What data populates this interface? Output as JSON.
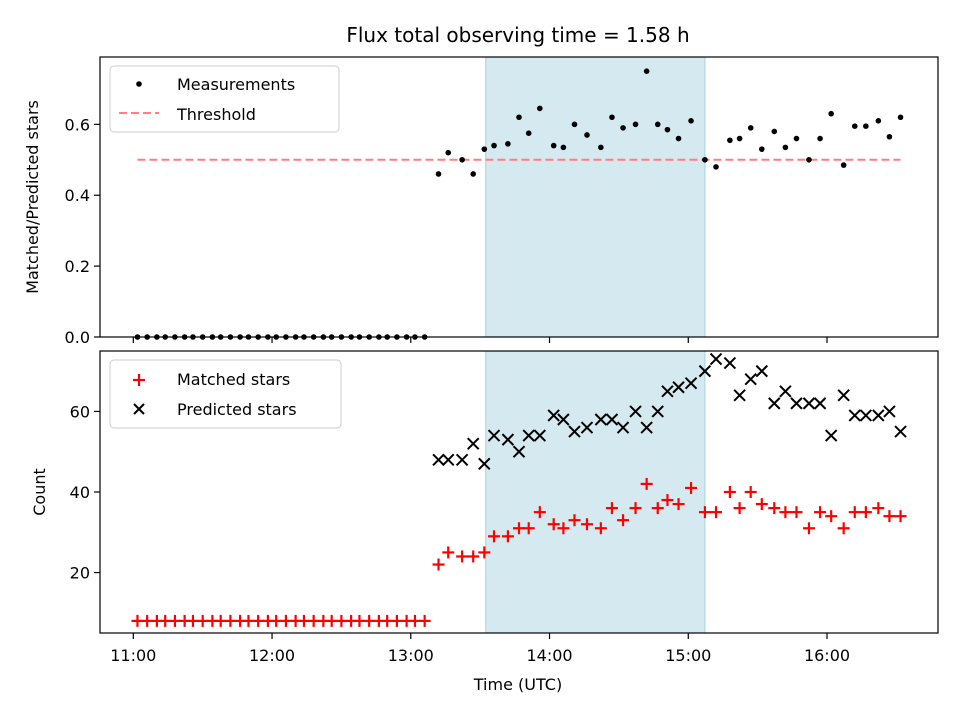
{
  "title": "Flux total observing time = 1.58 h",
  "shade": {
    "x_start": 13.54,
    "x_end": 15.12,
    "color": "#d4eaf0"
  },
  "x_axis": {
    "label": "Time (UTC)",
    "ticks": [
      11,
      12,
      13,
      14,
      15,
      16
    ],
    "tick_labels": [
      "11:00",
      "12:00",
      "13:00",
      "14:00",
      "15:00",
      "16:00"
    ],
    "range": [
      10.76,
      16.8
    ]
  },
  "chart_data": [
    {
      "type": "scatter",
      "ylabel": "Matched/Predicted stars",
      "ylim": [
        0,
        0.79
      ],
      "yticks": [
        0.0,
        0.2,
        0.4,
        0.6
      ],
      "ytick_labels": [
        "0.0",
        "0.2",
        "0.4",
        "0.6"
      ],
      "legend_position": "top-left",
      "threshold": {
        "name": "Threshold",
        "value": 0.5,
        "x_range": [
          11.03,
          16.53
        ],
        "color": "#ff7f7f"
      },
      "series": [
        {
          "name": "Measurements",
          "marker": "dot",
          "color": "#000000",
          "x": [
            11.03,
            11.1,
            11.17,
            11.23,
            11.3,
            11.37,
            11.43,
            11.5,
            11.57,
            11.63,
            11.7,
            11.77,
            11.83,
            11.9,
            11.97,
            12.03,
            12.1,
            12.17,
            12.23,
            12.3,
            12.37,
            12.43,
            12.5,
            12.57,
            12.63,
            12.7,
            12.77,
            12.83,
            12.9,
            12.97,
            13.03,
            13.1,
            13.2,
            13.27,
            13.37,
            13.45,
            13.53,
            13.6,
            13.7,
            13.78,
            13.85,
            13.93,
            14.03,
            14.1,
            14.18,
            14.27,
            14.37,
            14.45,
            14.53,
            14.62,
            14.7,
            14.78,
            14.85,
            14.93,
            15.02,
            15.12,
            15.2,
            15.3,
            15.37,
            15.45,
            15.53,
            15.62,
            15.7,
            15.78,
            15.87,
            15.95,
            16.03,
            16.12,
            16.2,
            16.28,
            16.37,
            16.45,
            16.53
          ],
          "y": [
            0,
            0,
            0,
            0,
            0,
            0,
            0,
            0,
            0,
            0,
            0,
            0,
            0,
            0,
            0,
            0,
            0,
            0,
            0,
            0,
            0,
            0,
            0,
            0,
            0,
            0,
            0,
            0,
            0,
            0,
            0,
            0,
            0.46,
            0.52,
            0.5,
            0.46,
            0.53,
            0.54,
            0.545,
            0.62,
            0.575,
            0.645,
            0.54,
            0.535,
            0.6,
            0.57,
            0.535,
            0.62,
            0.59,
            0.6,
            0.75,
            0.6,
            0.585,
            0.56,
            0.61,
            0.5,
            0.48,
            0.555,
            0.56,
            0.59,
            0.53,
            0.58,
            0.535,
            0.56,
            0.5,
            0.56,
            0.63,
            0.485,
            0.595,
            0.595,
            0.61,
            0.565,
            0.62
          ]
        }
      ]
    },
    {
      "type": "scatter",
      "ylabel": "Count",
      "ylim": [
        5,
        75
      ],
      "yticks": [
        20,
        40,
        60
      ],
      "ytick_labels": [
        "20",
        "40",
        "60"
      ],
      "legend_position": "top-left",
      "series": [
        {
          "name": "Matched stars",
          "marker": "plus",
          "color": "#ff0000",
          "x": [
            11.03,
            11.1,
            11.17,
            11.23,
            11.3,
            11.37,
            11.43,
            11.5,
            11.57,
            11.63,
            11.7,
            11.77,
            11.83,
            11.9,
            11.97,
            12.03,
            12.1,
            12.17,
            12.23,
            12.3,
            12.37,
            12.43,
            12.5,
            12.57,
            12.63,
            12.7,
            12.77,
            12.83,
            12.9,
            12.97,
            13.03,
            13.1,
            13.2,
            13.27,
            13.37,
            13.45,
            13.53,
            13.6,
            13.7,
            13.78,
            13.85,
            13.93,
            14.03,
            14.1,
            14.18,
            14.27,
            14.37,
            14.45,
            14.53,
            14.62,
            14.7,
            14.78,
            14.85,
            14.93,
            15.02,
            15.12,
            15.2,
            15.3,
            15.37,
            15.45,
            15.53,
            15.62,
            15.7,
            15.78,
            15.87,
            15.95,
            16.03,
            16.12,
            16.2,
            16.28,
            16.37,
            16.45,
            16.53
          ],
          "y": [
            8,
            8,
            8,
            8,
            8,
            8,
            8,
            8,
            8,
            8,
            8,
            8,
            8,
            8,
            8,
            8,
            8,
            8,
            8,
            8,
            8,
            8,
            8,
            8,
            8,
            8,
            8,
            8,
            8,
            8,
            8,
            8,
            22,
            25,
            24,
            24,
            25,
            29,
            29,
            31,
            31,
            35,
            32,
            31,
            33,
            32,
            31,
            36,
            33,
            36,
            42,
            36,
            38,
            37,
            41,
            35,
            35,
            40,
            36,
            40,
            37,
            36,
            35,
            35,
            31,
            35,
            34,
            31,
            35,
            35,
            36,
            34,
            34
          ]
        },
        {
          "name": "Predicted stars",
          "marker": "x",
          "color": "#000000",
          "x": [
            13.2,
            13.27,
            13.37,
            13.45,
            13.53,
            13.6,
            13.7,
            13.78,
            13.85,
            13.93,
            14.03,
            14.1,
            14.18,
            14.27,
            14.37,
            14.45,
            14.53,
            14.62,
            14.7,
            14.78,
            14.85,
            14.93,
            15.02,
            15.12,
            15.2,
            15.3,
            15.37,
            15.45,
            15.53,
            15.62,
            15.7,
            15.78,
            15.87,
            15.95,
            16.03,
            16.12,
            16.2,
            16.28,
            16.37,
            16.45,
            16.53
          ],
          "y": [
            48,
            48,
            48,
            52,
            47,
            54,
            53,
            50,
            54,
            54,
            59,
            58,
            55,
            56,
            58,
            58,
            56,
            60,
            56,
            60,
            65,
            66,
            67,
            70,
            73,
            72,
            64,
            68,
            70,
            62,
            65,
            62,
            62,
            62,
            54,
            64,
            59,
            59,
            59,
            60,
            55
          ]
        }
      ]
    }
  ]
}
